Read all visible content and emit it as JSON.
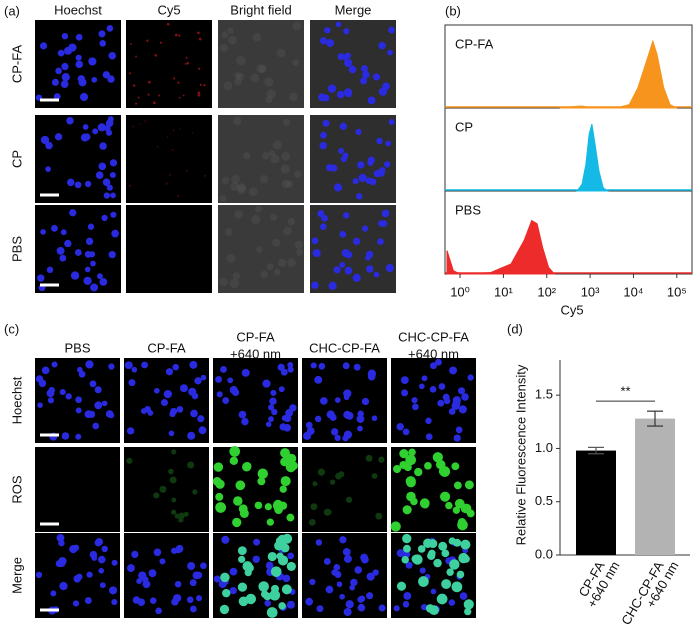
{
  "panel_a": {
    "label": "(a)",
    "columns": [
      "Hoechst",
      "Cy5",
      "Bright field",
      "Merge"
    ],
    "rows": [
      "CP-FA",
      "CP",
      "PBS"
    ]
  },
  "panel_c": {
    "label": "(c)",
    "columns": [
      [
        "PBS"
      ],
      [
        "CP-FA"
      ],
      [
        "CP-FA",
        "+640 nm"
      ],
      [
        "CHC-CP-FA"
      ],
      [
        "CHC-CP-FA",
        "+640 nm"
      ]
    ],
    "rows": [
      "Hoechst",
      "ROS",
      "Merge"
    ]
  },
  "chart_data": [
    {
      "type": "density",
      "panel_label": "(b)",
      "xlabel": "Cy5",
      "log_x": true,
      "xlim": [
        0.45,
        224000
      ],
      "xticks": [
        {
          "value": 1,
          "label": "10⁰"
        },
        {
          "value": 10,
          "label": "10¹"
        },
        {
          "value": 100,
          "label": "10²"
        },
        {
          "value": 1000,
          "label": "10³"
        },
        {
          "value": 10000,
          "label": "10⁴"
        },
        {
          "value": 100000,
          "label": "10⁵"
        }
      ],
      "ylim": [
        0,
        1.15
      ],
      "series": [
        {
          "name": "CP-FA",
          "color": "#f7941d",
          "x": [
            200,
            400,
            630,
            1000,
            4000,
            8000,
            12600,
            20000,
            28000,
            35000,
            50000,
            70000,
            100000
          ],
          "values": [
            0,
            0.02,
            0.03,
            0.01,
            0,
            0.05,
            0.3,
            0.7,
            1.0,
            0.8,
            0.3,
            0.05,
            0
          ]
        },
        {
          "name": "CP",
          "color": "#14b9e6",
          "x": [
            500,
            650,
            800,
            950,
            1100,
            1300,
            1600,
            2000,
            2500
          ],
          "values": [
            0,
            0.1,
            0.4,
            0.85,
            1.0,
            0.7,
            0.3,
            0.05,
            0
          ]
        },
        {
          "name": "PBS",
          "color": "#ee2b2b",
          "x": [
            0.5,
            0.7,
            1,
            5,
            15,
            30,
            45,
            60,
            80,
            110,
            150
          ],
          "values": [
            0.35,
            0.05,
            0,
            0.02,
            0.15,
            0.5,
            0.8,
            0.75,
            0.4,
            0.1,
            0
          ]
        }
      ]
    },
    {
      "type": "bar",
      "panel_label": "(d)",
      "ylabel": "Relative Fluorescence Intensity",
      "categories": [
        [
          "CP-FA",
          "+640 nm"
        ],
        [
          "CHC-CP-FA",
          "+640 nm"
        ]
      ],
      "values": [
        0.98,
        1.28
      ],
      "errors": [
        0.03,
        0.07
      ],
      "colors": [
        "#000000",
        "#b3b3b3"
      ],
      "ylim": [
        0,
        1.83
      ],
      "yticks": [
        {
          "value": 0,
          "label": "0.0"
        },
        {
          "value": 0.5,
          "label": "0.5"
        },
        {
          "value": 1,
          "label": "1.0"
        },
        {
          "value": 1.5,
          "label": "1.5"
        }
      ],
      "annotation": "**"
    }
  ]
}
